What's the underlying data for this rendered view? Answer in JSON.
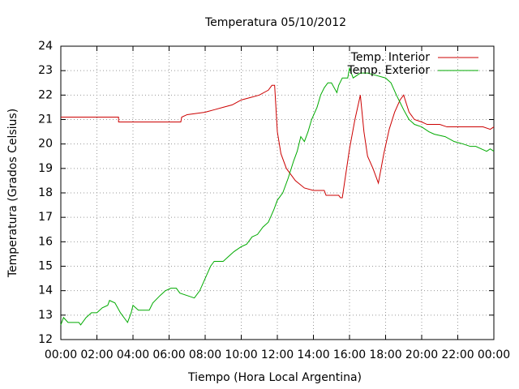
{
  "chart_data": {
    "type": "line",
    "title": "Temperatura 05/10/2012",
    "x_label": "Tiempo (Hora Local Argentina)",
    "y_label": "Temperatura (Grados Celsius)",
    "xlim": [
      0,
      24
    ],
    "xticks": [
      {
        "value": 0,
        "label": "00:00"
      },
      {
        "value": 2,
        "label": "02:00"
      },
      {
        "value": 4,
        "label": "04:00"
      },
      {
        "value": 6,
        "label": "06:00"
      },
      {
        "value": 8,
        "label": "08:00"
      },
      {
        "value": 10,
        "label": "10:00"
      },
      {
        "value": 12,
        "label": "12:00"
      },
      {
        "value": 14,
        "label": "14:00"
      },
      {
        "value": 16,
        "label": "16:00"
      },
      {
        "value": 18,
        "label": "18:00"
      },
      {
        "value": 20,
        "label": "20:00"
      },
      {
        "value": 22,
        "label": "22:00"
      },
      {
        "value": 24,
        "label": "00:00"
      }
    ],
    "ylim": [
      12,
      24
    ],
    "yticks": [
      12,
      13,
      14,
      15,
      16,
      17,
      18,
      19,
      20,
      21,
      22,
      23,
      24
    ],
    "grid": true,
    "legend": "top-right",
    "series": [
      {
        "name": "Temp. Interior",
        "color": "#cc0000",
        "x": [
          0,
          3.2,
          3.2,
          6.65,
          6.7,
          7,
          8,
          8.5,
          9,
          9.5,
          10,
          10.5,
          11,
          11.5,
          11.7,
          11.85,
          12.0,
          12.2,
          12.5,
          13,
          13.5,
          14,
          14.6,
          14.7,
          15.4,
          15.5,
          15.6,
          15.8,
          16.0,
          16.3,
          16.6,
          16.8,
          17.0,
          17.3,
          17.6,
          17.9,
          18.2,
          18.5,
          18.8,
          19.0,
          19.3,
          19.6,
          20.0,
          20.3,
          21,
          21.4,
          23.4,
          23.8,
          24
        ],
        "values": [
          21.1,
          21.1,
          20.9,
          20.9,
          21.1,
          21.2,
          21.3,
          21.4,
          21.5,
          21.6,
          21.8,
          21.9,
          22.0,
          22.2,
          22.4,
          22.4,
          20.5,
          19.6,
          19.0,
          18.5,
          18.2,
          18.1,
          18.1,
          17.9,
          17.9,
          17.8,
          17.8,
          18.8,
          19.8,
          21.0,
          22.0,
          20.5,
          19.5,
          19.0,
          18.4,
          19.6,
          20.6,
          21.3,
          21.8,
          22.0,
          21.3,
          21.0,
          20.9,
          20.8,
          20.8,
          20.7,
          20.7,
          20.6,
          20.7
        ]
      },
      {
        "name": "Temp. Exterior",
        "color": "#00aa00",
        "x": [
          0,
          0.15,
          0.4,
          1.0,
          1.1,
          1.4,
          1.7,
          2.0,
          2.3,
          2.6,
          2.7,
          3.0,
          3.3,
          3.6,
          3.7,
          3.9,
          4.0,
          4.3,
          4.9,
          5.1,
          5.5,
          5.8,
          6.1,
          6.4,
          6.6,
          7.0,
          7.4,
          7.7,
          8.0,
          8.3,
          8.5,
          9.0,
          9.3,
          9.6,
          10.0,
          10.3,
          10.6,
          10.9,
          11.2,
          11.5,
          11.8,
          12.0,
          12.3,
          12.6,
          12.9,
          13.1,
          13.3,
          13.5,
          13.7,
          13.9,
          14.2,
          14.4,
          14.6,
          14.8,
          15.0,
          15.3,
          15.4,
          15.6,
          15.9,
          16.0,
          16.2,
          16.6,
          17.0,
          17.5,
          18.0,
          18.3,
          18.6,
          19.0,
          19.3,
          19.6,
          20.0,
          20.4,
          20.7,
          21.3,
          21.8,
          22.3,
          22.7,
          23.0,
          23.3,
          23.6,
          23.8,
          24.0
        ],
        "values": [
          12.6,
          12.9,
          12.7,
          12.7,
          12.6,
          12.9,
          13.1,
          13.1,
          13.3,
          13.4,
          13.6,
          13.5,
          13.1,
          12.8,
          12.7,
          13.1,
          13.4,
          13.2,
          13.2,
          13.5,
          13.8,
          14.0,
          14.1,
          14.1,
          13.9,
          13.8,
          13.7,
          14.0,
          14.5,
          15.0,
          15.2,
          15.2,
          15.4,
          15.6,
          15.8,
          15.9,
          16.2,
          16.3,
          16.6,
          16.8,
          17.3,
          17.7,
          18.0,
          18.6,
          19.3,
          19.7,
          20.3,
          20.1,
          20.5,
          21.0,
          21.5,
          22.0,
          22.3,
          22.5,
          22.5,
          22.1,
          22.4,
          22.7,
          22.7,
          23.1,
          22.7,
          22.9,
          22.9,
          22.8,
          22.7,
          22.5,
          22.0,
          21.4,
          21.0,
          20.8,
          20.7,
          20.5,
          20.4,
          20.3,
          20.1,
          20.0,
          19.9,
          19.9,
          19.8,
          19.7,
          19.8,
          19.7
        ]
      }
    ]
  }
}
